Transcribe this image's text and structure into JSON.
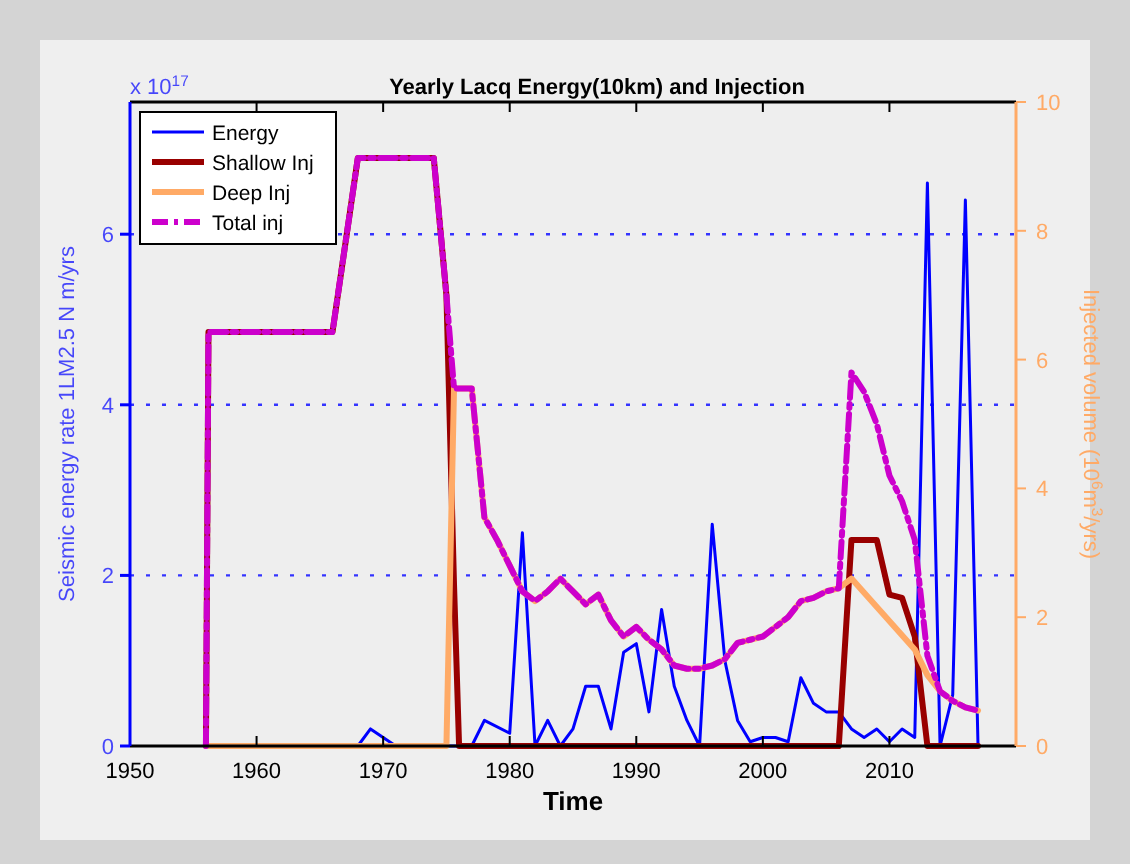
{
  "chart_data": {
    "type": "line",
    "title": "Yearly Lacq Energy(10km) and Injection",
    "xlabel": "Time",
    "ylabel": "Seismic energy rate 1LM2.5 N m/yrs",
    "y2label": "Injected volume (10$^{6}$m$^{3}$/yrs)",
    "annotations": [
      "x 10$^{17}$"
    ],
    "xlim": [
      1950,
      2020
    ],
    "xticks": [
      1950,
      1960,
      1970,
      1980,
      1990,
      2000,
      2010
    ],
    "ylim": [
      0,
      7.55
    ],
    "yticks": [
      0,
      2,
      4,
      6
    ],
    "y2lim": [
      0,
      10
    ],
    "y2ticks": [
      0,
      2,
      4,
      6,
      8,
      10
    ],
    "grid": "y",
    "legend": "top left",
    "series": [
      {
        "name": "Energy",
        "color": "#0000ff",
        "x": [
          1968,
          1969,
          1971,
          1976,
          1977,
          1978,
          1980,
          1981,
          1982,
          1983,
          1984,
          1985,
          1986,
          1987,
          1988,
          1989,
          1990,
          1991,
          1992,
          1993,
          1994,
          1995,
          1996,
          1997,
          1998,
          1999,
          2000,
          2001,
          2002,
          2003,
          2004,
          2005,
          2006,
          2007,
          2008,
          2009,
          2010,
          2011,
          2012,
          2013,
          2014,
          2015,
          2016,
          2017
        ],
        "values": [
          0,
          0.2,
          0,
          0,
          0,
          0.3,
          0.15,
          2.5,
          0,
          0.3,
          0,
          0.2,
          0.7,
          0.7,
          0.2,
          1.1,
          1.2,
          0.4,
          1.6,
          0.7,
          0.3,
          0,
          2.6,
          1.0,
          0.3,
          0.05,
          0.1,
          0.1,
          0.05,
          0.8,
          0.5,
          0.4,
          0.4,
          0.2,
          0.1,
          0.2,
          0.05,
          0.2,
          0.1,
          6.6,
          0,
          0.6,
          6.4,
          0
        ]
      },
      {
        "name": "Shallow  Inj",
        "color": "#990000",
        "axis": "y2",
        "x": [
          1956,
          1956.2,
          1966,
          1968,
          1974,
          1975,
          1975.6,
          1976,
          2006,
          2007,
          2009,
          2010,
          2011,
          2012,
          2013,
          2017
        ],
        "values": [
          0,
          6.43,
          6.43,
          9.13,
          9.13,
          7.0,
          2.5,
          0,
          0,
          3.2,
          3.2,
          2.35,
          2.3,
          1.7,
          0,
          0
        ]
      },
      {
        "name": "Deep Inj",
        "color": "#ffaa66",
        "axis": "y2",
        "x": [
          1956,
          1975,
          1975.6,
          1977,
          1978,
          1979,
          1980,
          1981,
          1982,
          1983,
          1984,
          1985,
          1986,
          1987,
          1988,
          1989,
          1990,
          1991,
          1992,
          1993,
          1994,
          1995,
          1996,
          1997,
          1998,
          1999,
          2000,
          2001,
          2002,
          2003,
          2004,
          2005,
          2006,
          2007,
          2012,
          2013,
          2014,
          2015,
          2016,
          2017
        ],
        "values": [
          0,
          0,
          5.55,
          5.55,
          3.55,
          3.2,
          2.8,
          2.4,
          2.25,
          2.4,
          2.6,
          2.4,
          2.2,
          2.35,
          1.95,
          1.7,
          1.85,
          1.65,
          1.5,
          1.25,
          1.2,
          1.2,
          1.25,
          1.35,
          1.6,
          1.65,
          1.7,
          1.85,
          2.0,
          2.25,
          2.3,
          2.4,
          2.45,
          2.6,
          1.5,
          1.1,
          0.85,
          0.7,
          0.6,
          0.55
        ]
      },
      {
        "name": "Total inj",
        "color": "#cc00cc",
        "axis": "y2",
        "line_style": "dashed",
        "x": [
          1956,
          1956.2,
          1966,
          1968,
          1974,
          1975,
          1975.6,
          1977,
          1978,
          1979,
          1980,
          1981,
          1982,
          1983,
          1984,
          1985,
          1986,
          1987,
          1988,
          1989,
          1990,
          1991,
          1992,
          1993,
          1994,
          1995,
          1996,
          1997,
          1998,
          1999,
          2000,
          2001,
          2002,
          2003,
          2004,
          2005,
          2006,
          2007,
          2008,
          2009,
          2010,
          2011,
          2012,
          2013,
          2014,
          2015,
          2016,
          2017
        ],
        "values": [
          0,
          6.43,
          6.43,
          9.13,
          9.13,
          7.0,
          5.55,
          5.55,
          3.55,
          3.2,
          2.8,
          2.4,
          2.25,
          2.4,
          2.6,
          2.4,
          2.2,
          2.35,
          1.95,
          1.7,
          1.85,
          1.65,
          1.5,
          1.25,
          1.2,
          1.2,
          1.25,
          1.35,
          1.6,
          1.65,
          1.7,
          1.85,
          2.0,
          2.25,
          2.3,
          2.4,
          2.45,
          5.8,
          5.5,
          5.0,
          4.2,
          3.8,
          3.2,
          1.4,
          0.85,
          0.7,
          0.6,
          0.55
        ]
      }
    ]
  }
}
